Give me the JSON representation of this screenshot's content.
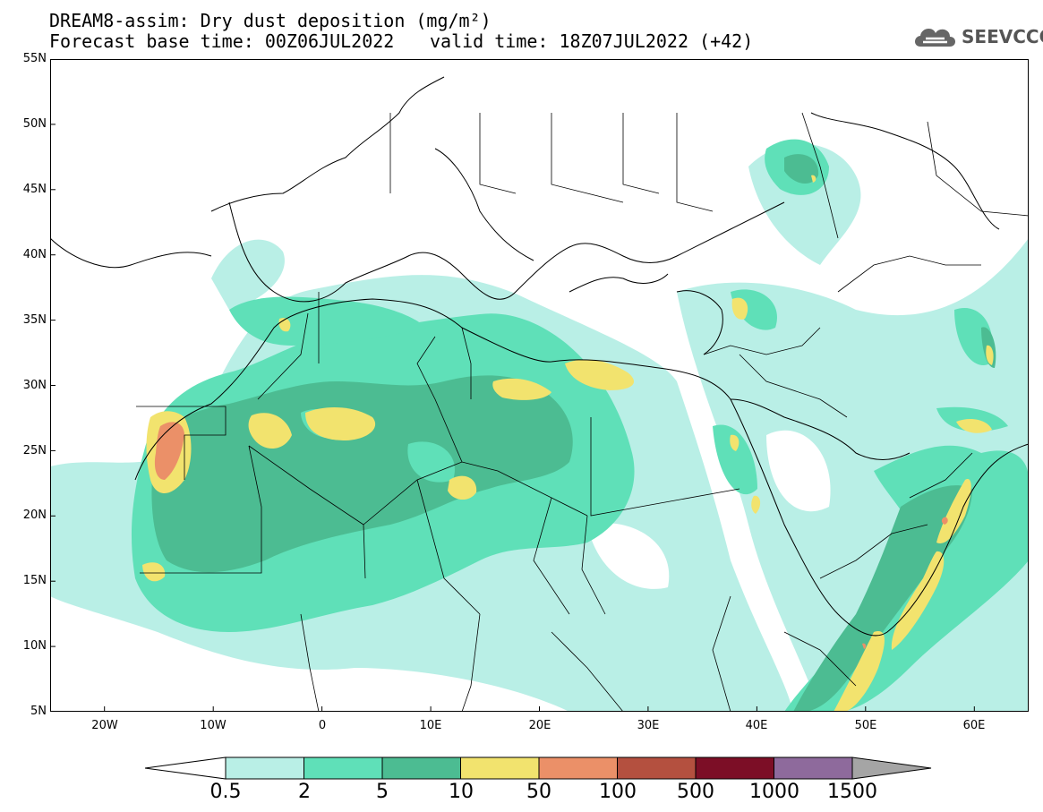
{
  "title": {
    "line1": "DREAM8-assim: Dry dust deposition (mg/m²)",
    "line2": "Forecast base time: 00Z06JUL2022",
    "line2b": "valid time: 18Z07JUL2022 (+42)"
  },
  "logo": {
    "text": "SEEVCCC",
    "icon": "cloud-icon"
  },
  "axes": {
    "lat_labels": [
      "55N",
      "50N",
      "45N",
      "40N",
      "35N",
      "30N",
      "25N",
      "20N",
      "15N",
      "10N",
      "5N"
    ],
    "lon_labels": [
      "20W",
      "10W",
      "0",
      "10E",
      "20E",
      "30E",
      "40E",
      "50E",
      "60E"
    ]
  },
  "colors": {
    "c1": "#b9efe6",
    "c2": "#5fe0b8",
    "c3": "#4cbc92",
    "c4": "#f2e36e",
    "c5": "#eb9068",
    "c6": "#b4503f",
    "c7": "#7c0e26",
    "c8": "#8e6a9c",
    "c9": "#a5a5a5"
  },
  "legend": {
    "labels": [
      "0.5",
      "2",
      "5",
      "10",
      "50",
      "100",
      "500",
      "1000",
      "1500"
    ]
  }
}
